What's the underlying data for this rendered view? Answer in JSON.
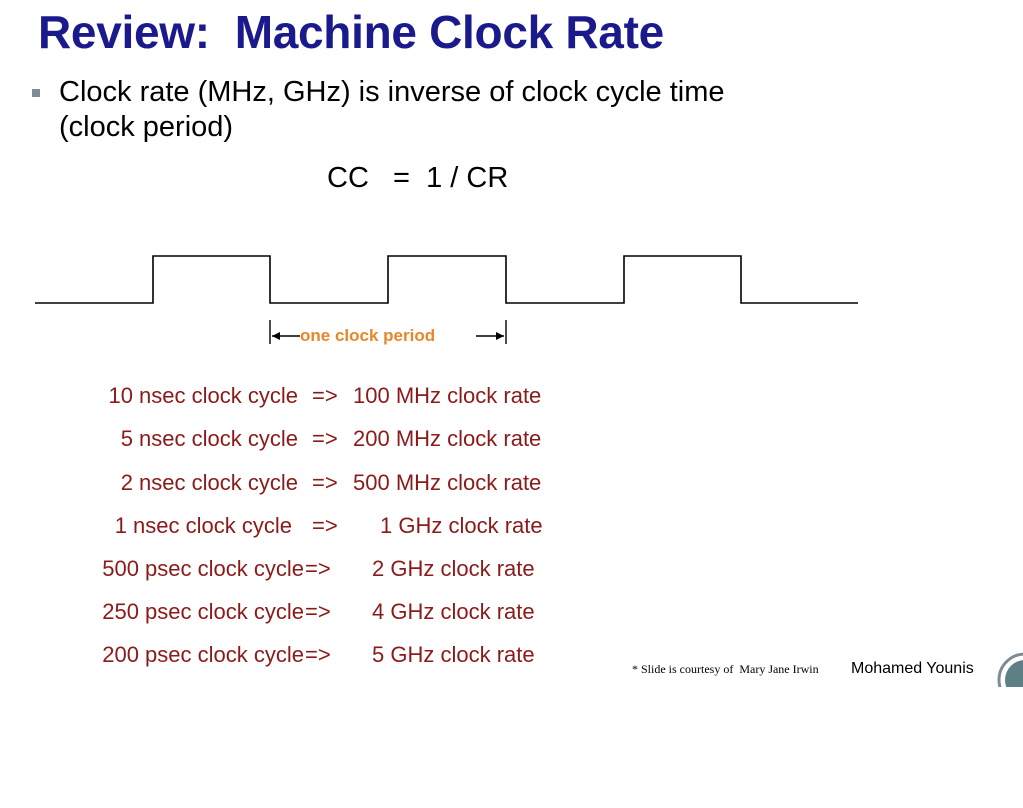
{
  "slide": {
    "title": "Review:  Machine Clock Rate",
    "bullet_line1": "Clock rate (MHz, GHz) is inverse of clock cycle time",
    "bullet_line2": "(clock period)",
    "formula": "CC   =  1 / CR",
    "period_label": "one clock period"
  },
  "rates": [
    {
      "cycle": "10 nsec clock cycle",
      "arrow": "=>",
      "rate": "100 MHz clock rate"
    },
    {
      "cycle": "5 nsec clock cycle",
      "arrow": "=>",
      "rate": "200 MHz clock rate"
    },
    {
      "cycle": "2 nsec clock cycle",
      "arrow": "=>",
      "rate": "500 MHz clock rate"
    },
    {
      "cycle": "1 nsec clock cycle",
      "arrow": "=>",
      "rate": "1 GHz clock rate"
    },
    {
      "cycle": "500 psec clock cycle",
      "arrow": "=>",
      "rate": "2 GHz clock rate"
    },
    {
      "cycle": "250 psec clock cycle",
      "arrow": "=>",
      "rate": "4 GHz clock rate"
    },
    {
      "cycle": "200 psec clock cycle",
      "arrow": "=>",
      "rate": "5 GHz clock rate"
    }
  ],
  "footer": {
    "credit": "* Slide is courtesy of  Mary Jane Irwin",
    "author": "Mohamed Younis"
  },
  "colors": {
    "title": "#1a1a8c",
    "rate_text": "#8b1a1a",
    "period_label": "#e8862a"
  },
  "icons": {
    "bullet": "square-bullet-icon",
    "corner": "circle-decoration-icon"
  }
}
